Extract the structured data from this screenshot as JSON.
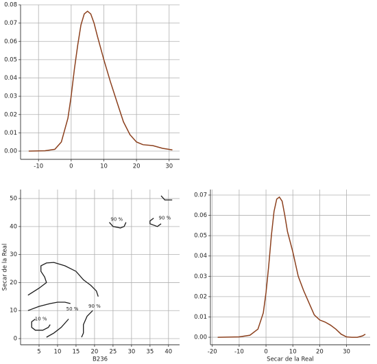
{
  "chart_data": [
    {
      "type": "line",
      "color": "#8b3f1c",
      "grid": true,
      "x": [
        -13,
        -8,
        -5,
        -3,
        -1,
        0,
        1,
        2,
        3,
        4,
        5,
        6,
        7,
        8,
        10,
        12,
        14,
        16,
        18,
        20,
        22,
        25,
        28,
        31
      ],
      "values": [
        0,
        0.0002,
        0.001,
        0.005,
        0.018,
        0.03,
        0.045,
        0.058,
        0.069,
        0.075,
        0.0765,
        0.075,
        0.07,
        0.063,
        0.05,
        0.038,
        0.027,
        0.016,
        0.009,
        0.005,
        0.0035,
        0.003,
        0.0015,
        0.0007
      ],
      "xlim": [
        -15.5,
        33.2
      ],
      "ylim": [
        -0.0045,
        0.08
      ],
      "xticks": [
        -10,
        0,
        10,
        20,
        30
      ],
      "yticks": [
        {
          "value": 0,
          "label": "0.00"
        },
        0.01,
        0.02,
        0.03,
        0.04,
        0.05,
        0.06,
        0.07,
        0.08
      ]
    },
    {
      "type": "contour",
      "color": "#1a1a1a",
      "grid": true,
      "xlabel": "B236",
      "ylabel": "Secar de la Real",
      "contours": [
        {
          "x": [
            2,
            5,
            7,
            6.5,
            5.5,
            5.5,
            7,
            9,
            12,
            15,
            17,
            19,
            20.5,
            21
          ],
          "y": [
            15.5,
            18,
            20,
            22,
            24,
            26,
            27,
            27.2,
            26,
            24,
            21,
            19,
            17,
            15
          ]
        },
        {
          "x": [
            2,
            5,
            8,
            10,
            12,
            13.5
          ],
          "y": [
            10,
            11.5,
            12.5,
            13,
            13,
            12.5
          ]
        },
        {
          "x": [
            4,
            3,
            3,
            4,
            6,
            7.5,
            8
          ],
          "y": [
            7,
            6,
            4,
            3,
            3,
            4,
            5
          ]
        },
        {
          "x": [
            7,
            9,
            11,
            13
          ],
          "y": [
            0.5,
            2,
            4,
            7
          ]
        },
        {
          "x": [
            16.5,
            17,
            17,
            18,
            19.5
          ],
          "y": [
            0.5,
            2,
            5,
            8,
            10
          ]
        },
        {
          "x": [
            24,
            25,
            27,
            28,
            28.5
          ],
          "y": [
            41.5,
            40,
            39.5,
            40,
            41.5
          ]
        },
        {
          "x": [
            36,
            35,
            35,
            37,
            38
          ],
          "y": [
            43,
            42,
            41,
            40,
            41
          ]
        },
        {
          "x": [
            38,
            39,
            41
          ],
          "y": [
            51,
            49.5,
            49.5
          ]
        }
      ],
      "labels": [
        {
          "text": "90 %",
          "x": 26,
          "y": 42.5
        },
        {
          "text": "90 %",
          "x": 39,
          "y": 43
        },
        {
          "text": "10 %",
          "x": 5.5,
          "y": 7
        },
        {
          "text": "50 %",
          "x": 14,
          "y": 10.5
        },
        {
          "text": "90 %",
          "x": 20,
          "y": 11.5
        }
      ],
      "xlim": [
        0,
        43
      ],
      "ylim": [
        -2.2,
        53.2
      ],
      "xticks": [
        5,
        10,
        15,
        20,
        25,
        30,
        35,
        40
      ],
      "yticks": [
        0,
        10,
        20,
        30,
        40,
        50
      ]
    },
    {
      "type": "line",
      "color": "#8b3f1c",
      "grid": true,
      "xlabel": "Secar de la Real",
      "x": [
        -18,
        -10,
        -6,
        -3,
        -1,
        0,
        1,
        2,
        3,
        4,
        5,
        6,
        7,
        8,
        10,
        12,
        14,
        16,
        18,
        20,
        22,
        24,
        26,
        28,
        30,
        32,
        34,
        36,
        37
      ],
      "values": [
        0,
        0.0002,
        0.001,
        0.004,
        0.012,
        0.022,
        0.035,
        0.05,
        0.062,
        0.068,
        0.069,
        0.067,
        0.06,
        0.052,
        0.042,
        0.03,
        0.023,
        0.017,
        0.011,
        0.0085,
        0.0075,
        0.006,
        0.004,
        0.0015,
        0.0002,
        0,
        0,
        0.0007,
        0.0015
      ],
      "xlim": [
        -20.7,
        38.8
      ],
      "ylim": [
        -0.0037,
        0.0727
      ],
      "xticks": [
        -20,
        -10,
        0,
        10,
        20,
        30
      ],
      "yticks": [
        {
          "value": 0,
          "label": "0.00"
        },
        0.01,
        0.02,
        0.03,
        0.04,
        0.05,
        0.06,
        0.07
      ]
    }
  ]
}
